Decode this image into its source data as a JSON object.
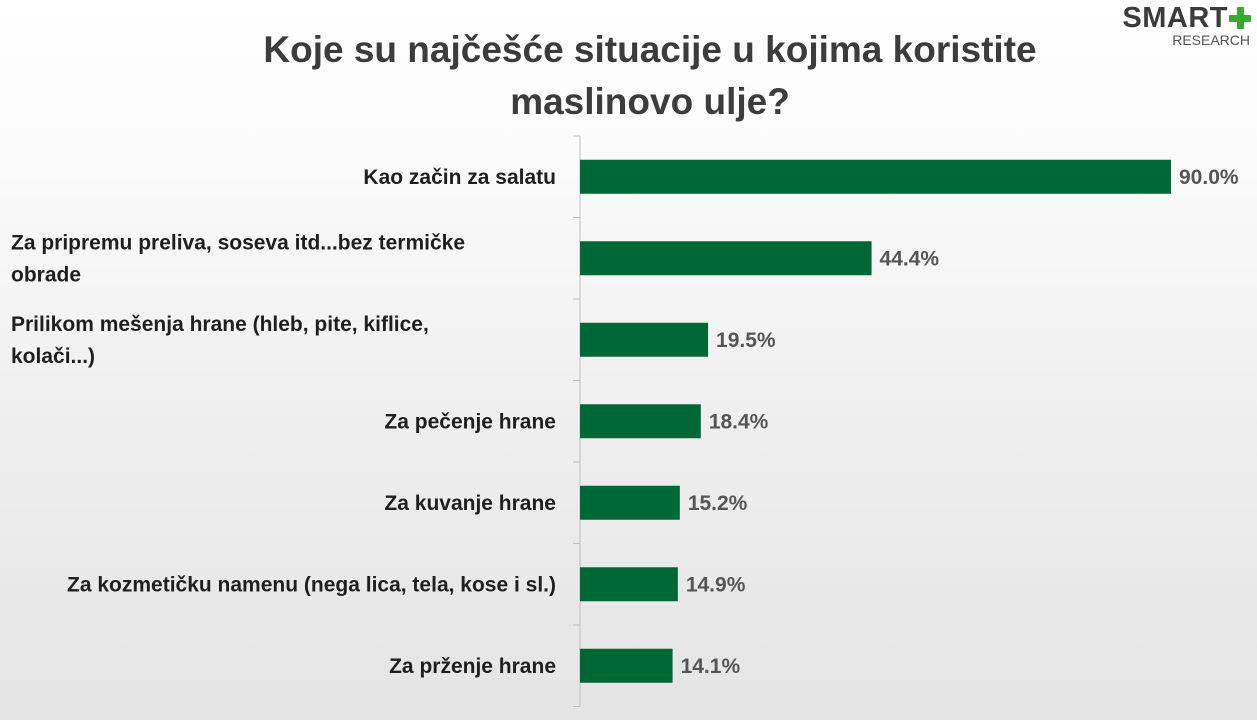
{
  "logo": {
    "brand": "SMART",
    "sub": "RESEARCH"
  },
  "chart_data": {
    "type": "bar",
    "orientation": "horizontal",
    "title": "Koje su najčešće situacije u kojima koristite maslinovo ulje?",
    "categories": [
      [
        "Kao začin za salatu"
      ],
      [
        "Za pripremu preliva, soseva itd...bez termičke",
        "obrade"
      ],
      [
        "Prilikom mešenja hrane (hleb, pite, kiflice,",
        "kolači...)"
      ],
      [
        "Za pečenje hrane"
      ],
      [
        "Za kuvanje hrane"
      ],
      [
        "Za kozmetičku namenu (nega lica, tela, kose i sl.)"
      ],
      [
        "Za prženje hrane"
      ]
    ],
    "values": [
      90.0,
      44.4,
      19.5,
      18.4,
      15.2,
      14.9,
      14.1
    ],
    "value_labels": [
      "90.0%",
      "44.4%",
      "19.5%",
      "18.4%",
      "15.2%",
      "14.9%",
      "14.1%"
    ],
    "xlim": [
      0,
      90
    ],
    "bar_color": "#006837",
    "grid": false,
    "legend": "none"
  }
}
